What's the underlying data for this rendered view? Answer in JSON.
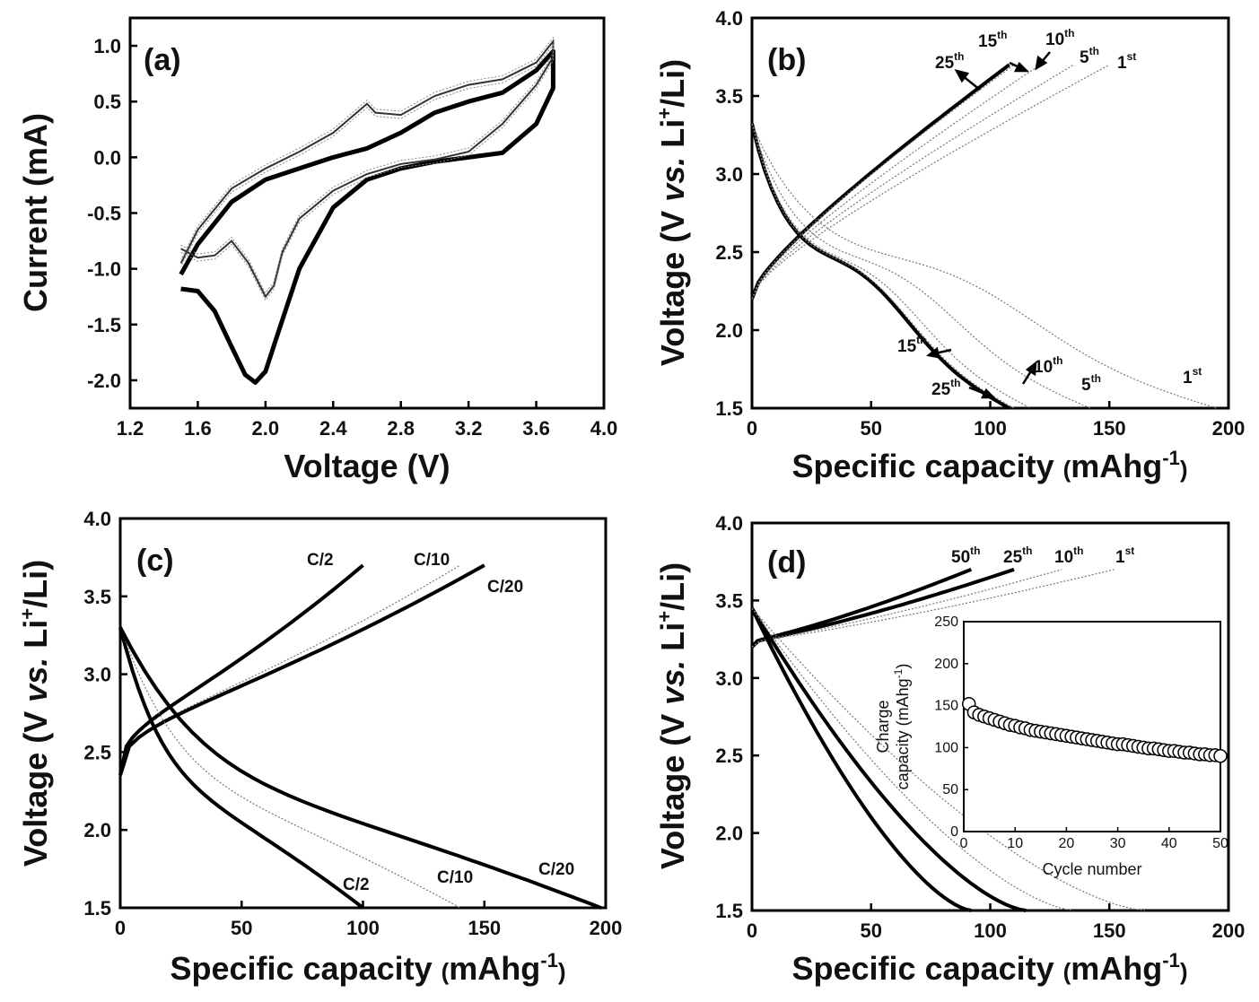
{
  "chart_data": [
    {
      "panel": "(a)",
      "type": "line",
      "xlabel": "Voltage (V)",
      "ylabel": "Current (mA)",
      "xlim": [
        1.2,
        4.0
      ],
      "ylim": [
        -2.25,
        1.25
      ],
      "xticks": [
        1.2,
        1.6,
        2.0,
        2.4,
        2.8,
        3.2,
        3.6,
        4.0
      ],
      "yticks": [
        -2.0,
        -1.5,
        -1.0,
        -0.5,
        0.0,
        0.5,
        1.0
      ],
      "series": [
        {
          "style": "thick",
          "x": [
            1.5,
            1.6,
            1.7,
            1.8,
            1.88,
            1.94,
            2.0,
            2.08,
            2.2,
            2.4,
            2.6,
            2.8,
            3.0,
            3.2,
            3.4,
            3.6,
            3.7,
            3.7,
            3.6,
            3.4,
            3.2,
            3.0,
            2.8,
            2.6,
            2.4,
            2.2,
            2.0,
            1.8,
            1.6,
            1.5
          ],
          "y": [
            -1.18,
            -1.2,
            -1.38,
            -1.7,
            -1.95,
            -2.02,
            -1.92,
            -1.55,
            -1.0,
            -0.45,
            -0.2,
            -0.1,
            -0.04,
            0.0,
            0.04,
            0.3,
            0.62,
            0.95,
            0.78,
            0.58,
            0.5,
            0.4,
            0.22,
            0.08,
            0.0,
            -0.1,
            -0.2,
            -0.4,
            -0.78,
            -1.05
          ]
        },
        {
          "style": "thin",
          "x": [
            1.5,
            1.6,
            1.7,
            1.8,
            1.9,
            2.0,
            2.05,
            2.1,
            2.2,
            2.4,
            2.6,
            2.8,
            3.0,
            3.2,
            3.4,
            3.6,
            3.7,
            3.7,
            3.6,
            3.4,
            3.2,
            3.0,
            2.8,
            2.65,
            2.6,
            2.5,
            2.4,
            2.2,
            2.0,
            1.8,
            1.6,
            1.5
          ],
          "y": [
            -0.82,
            -0.9,
            -0.88,
            -0.75,
            -0.95,
            -1.25,
            -1.15,
            -0.85,
            -0.55,
            -0.3,
            -0.15,
            -0.06,
            -0.02,
            0.05,
            0.3,
            0.65,
            0.9,
            1.04,
            0.85,
            0.7,
            0.65,
            0.55,
            0.38,
            0.4,
            0.48,
            0.35,
            0.22,
            0.05,
            -0.1,
            -0.28,
            -0.65,
            -0.95
          ]
        }
      ]
    },
    {
      "panel": "(b)",
      "type": "line",
      "xlabel": "Specific capacity (mAhg-1)",
      "ylabel": "Voltage (V vs. Li+/Li)",
      "xlim": [
        0,
        200
      ],
      "ylim": [
        1.5,
        4.0
      ],
      "xticks": [
        0,
        50,
        100,
        150,
        200
      ],
      "yticks": [
        1.5,
        2.0,
        2.5,
        3.0,
        3.5,
        4.0
      ],
      "charge_annotations": [
        "25th",
        "15th",
        "10th",
        "5th",
        "1st"
      ],
      "discharge_annotations": [
        "15th",
        "25th",
        "10th",
        "5th",
        "1st"
      ],
      "charge_end_capacity": [
        108,
        110,
        121,
        135,
        150
      ],
      "discharge_end_capacity": [
        108,
        110,
        117,
        142,
        195
      ]
    },
    {
      "panel": "(c)",
      "type": "line",
      "xlabel": "Specific capacity (mAhg-1)",
      "ylabel": "Voltage (V vs. Li+/Li)",
      "xlim": [
        0,
        200
      ],
      "ylim": [
        1.5,
        4.0
      ],
      "xticks": [
        0,
        50,
        100,
        150,
        200
      ],
      "yticks": [
        1.5,
        2.0,
        2.5,
        3.0,
        3.5,
        4.0
      ],
      "charge_annotations": [
        "C/2",
        "C/10",
        "C/20"
      ],
      "discharge_annotations": [
        "C/2",
        "C/10",
        "C/20"
      ],
      "charge_end_capacity": [
        100,
        140,
        150
      ],
      "discharge_end_capacity": [
        100,
        140,
        198
      ]
    },
    {
      "panel": "(d)",
      "type": "line",
      "xlabel": "Specific capacity (mAhg-1)",
      "ylabel": "Voltage (V vs. Li+/Li)",
      "xlim": [
        0,
        200
      ],
      "ylim": [
        1.5,
        4.0
      ],
      "xticks": [
        0,
        50,
        100,
        150,
        200
      ],
      "yticks": [
        1.5,
        2.0,
        2.5,
        3.0,
        3.5,
        4.0
      ],
      "charge_annotations": [
        "50th",
        "25th",
        "10th",
        "1st"
      ],
      "charge_end_capacity": [
        92,
        110,
        130,
        152
      ],
      "discharge_end_capacity": [
        92,
        115,
        135,
        165
      ]
    },
    {
      "panel": "(d) inset",
      "type": "scatter",
      "xlabel": "Cycle number",
      "ylabel": "Charge capacity (mAhg-1)",
      "xlim": [
        0,
        50
      ],
      "ylim": [
        0,
        250
      ],
      "xticks": [
        0,
        10,
        20,
        30,
        40,
        50
      ],
      "yticks": [
        0,
        50,
        100,
        150,
        200,
        250
      ],
      "x": [
        1,
        2,
        3,
        4,
        5,
        6,
        7,
        8,
        9,
        10,
        11,
        12,
        13,
        14,
        15,
        16,
        17,
        18,
        19,
        20,
        21,
        22,
        23,
        24,
        25,
        26,
        27,
        28,
        29,
        30,
        31,
        32,
        33,
        34,
        35,
        36,
        37,
        38,
        39,
        40,
        41,
        42,
        43,
        44,
        45,
        46,
        47,
        48,
        49,
        50
      ],
      "values": [
        152,
        142,
        139,
        137,
        135,
        133,
        131,
        129,
        127,
        126,
        124,
        123,
        121,
        120,
        119,
        118,
        117,
        116,
        115,
        114,
        113,
        112,
        111,
        110,
        109,
        108,
        107,
        106,
        105,
        104,
        104,
        103,
        102,
        101,
        100,
        99,
        99,
        98,
        97,
        96,
        96,
        95,
        94,
        94,
        93,
        92,
        92,
        91,
        91,
        90
      ]
    }
  ],
  "labels": {
    "a": {
      "panel": "(a)",
      "xlabel": "Voltage (V)",
      "ylabel": "Current (mA)"
    },
    "b": {
      "panel": "(b)"
    },
    "c": {
      "panel": "(c)"
    },
    "d": {
      "panel": "(d)"
    },
    "specific_capacity": "Specific capacity",
    "unit_open": "(",
    "unit_main": "mAhg",
    "unit_exp": "-1",
    "unit_close": ")",
    "voltage_prefix": "Voltage (V ",
    "vs": "vs.",
    "li": " Li",
    "li_sup": "+",
    "li_suffix": "/Li)",
    "inset_ylabel_1": "Charge",
    "inset_ylabel_2": "capacity (mAhg",
    "inset_ylabel_exp": "-1",
    "inset_ylabel_3": ")",
    "inset_xlabel": "Cycle number"
  },
  "ann": {
    "b_c25": {
      "n": "25",
      "s": "th"
    },
    "b_c15": {
      "n": "15",
      "s": "th"
    },
    "b_c10": {
      "n": "10",
      "s": "th"
    },
    "b_c5": {
      "n": "5",
      "s": "th"
    },
    "b_c1": {
      "n": "1",
      "s": "st"
    },
    "b_d15": {
      "n": "15",
      "s": "th"
    },
    "b_d25": {
      "n": "25",
      "s": "th"
    },
    "b_d10": {
      "n": "10",
      "s": "th"
    },
    "b_d5": {
      "n": "5",
      "s": "th"
    },
    "b_d1": {
      "n": "1",
      "s": "st"
    },
    "c_c2": "C/2",
    "c_c10": "C/10",
    "c_c20": "C/20",
    "c_d2": "C/2",
    "c_d10": "C/10",
    "c_d20": "C/20",
    "d_c50": {
      "n": "50",
      "s": "th"
    },
    "d_c25": {
      "n": "25",
      "s": "th"
    },
    "d_c10": {
      "n": "10",
      "s": "th"
    },
    "d_c1": {
      "n": "1",
      "s": "st"
    }
  }
}
